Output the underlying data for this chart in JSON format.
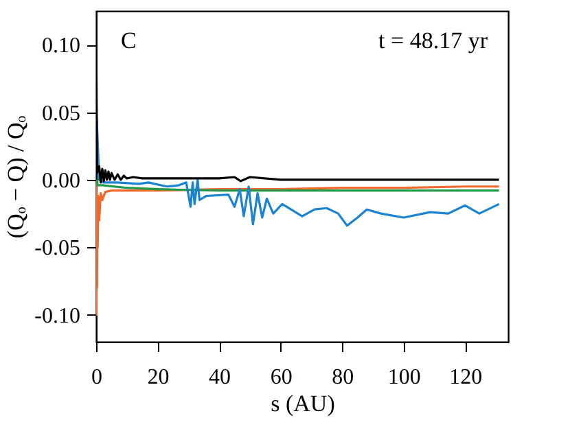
{
  "chart_data": {
    "type": "line",
    "xlabel": "s (AU)",
    "ylabel": "(Qₒ − Q) / Qₒ",
    "annotations": [
      "C",
      "t =  48.17 yr"
    ],
    "xlim": [
      0,
      134
    ],
    "xticks": [
      0,
      20,
      40,
      60,
      80,
      100,
      120
    ],
    "ylim": [
      -0.12,
      0.125
    ],
    "yticks": [
      {
        "value": -0.1,
        "label": "-0.10"
      },
      {
        "value": -0.05,
        "label": "-0.05"
      },
      {
        "value": 0,
        "label": "0.00"
      },
      {
        "value": 0.05,
        "label": "0.05"
      },
      {
        "value": 0.1,
        "label": "0.10"
      }
    ],
    "grid": false,
    "legend": false,
    "marker": "none",
    "line_style": "solid",
    "series": [
      {
        "color": "#ef6a2c",
        "x": [
          0,
          0.1,
          0.2,
          0.3,
          0.4,
          0.5,
          0.7,
          1,
          1.5,
          2,
          3,
          5,
          10,
          20,
          40,
          60,
          80,
          100,
          120,
          131
        ],
        "values": [
          0,
          -0.1,
          -0.01,
          -0.08,
          -0.02,
          -0.05,
          -0.012,
          -0.03,
          -0.01,
          -0.015,
          -0.009,
          -0.008,
          -0.008,
          -0.008,
          -0.007,
          -0.007,
          -0.006,
          -0.006,
          -0.005,
          -0.005
        ]
      },
      {
        "color": "#1f9a48",
        "x": [
          0,
          0.1,
          0.4,
          2,
          10,
          20,
          40,
          60,
          80,
          100,
          120,
          131
        ],
        "values": [
          0,
          0.055,
          -0.004,
          -0.004,
          -0.006,
          -0.007,
          -0.008,
          -0.008,
          -0.008,
          -0.008,
          -0.008,
          -0.008
        ]
      },
      {
        "color": "#1b84d2",
        "x": [
          0,
          0.2,
          1,
          2.3,
          6.7,
          14,
          17,
          23,
          27,
          29.3,
          30.7,
          31.4,
          32,
          33,
          33.6,
          35.8,
          43,
          45,
          46.7,
          48,
          49.6,
          51,
          52.5,
          54,
          55.5,
          57.6,
          60.5,
          63.4,
          67,
          71,
          75,
          78.7,
          81.6,
          85,
          88,
          92.6,
          100,
          108.6,
          114.5,
          120,
          124.6,
          131
        ],
        "values": [
          0,
          0.045,
          0.0,
          -0.002,
          -0.002,
          -0.003,
          -0.002,
          -0.005,
          -0.004,
          -0.002,
          -0.02,
          -0.002,
          -0.018,
          0.0,
          -0.015,
          -0.012,
          -0.011,
          -0.02,
          -0.007,
          -0.027,
          -0.005,
          -0.033,
          -0.01,
          -0.028,
          -0.014,
          -0.025,
          -0.018,
          -0.022,
          -0.027,
          -0.022,
          -0.021,
          -0.025,
          -0.034,
          -0.028,
          -0.022,
          -0.025,
          -0.028,
          -0.024,
          -0.025,
          -0.019,
          -0.025,
          -0.018
        ]
      },
      {
        "color": "#000000",
        "x": [
          0,
          0.05,
          0.3,
          1,
          1.5,
          2,
          2.5,
          3,
          3.5,
          4,
          4.5,
          5,
          6,
          7,
          8,
          9,
          10,
          12,
          15,
          20,
          30,
          40,
          45,
          47,
          50,
          60,
          80,
          100,
          120,
          131
        ],
        "values": [
          0,
          0.092,
          0.005,
          0.01,
          -0.002,
          0.008,
          -0.001,
          0.007,
          0.0,
          0.006,
          0.0,
          0.005,
          0.0,
          0.004,
          0.0,
          0.003,
          0.001,
          0.002,
          0.001,
          0.001,
          0.001,
          0.001,
          0.002,
          -0.001,
          0.002,
          0.0,
          0.0,
          0.0,
          0.0,
          0.0
        ]
      }
    ]
  }
}
